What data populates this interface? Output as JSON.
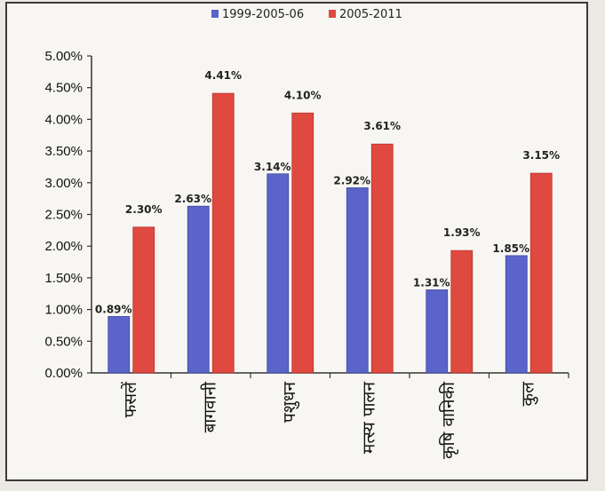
{
  "chart_data": {
    "type": "bar",
    "categories": [
      "फसलें",
      "बागवानी",
      "पशुधन",
      "मत्स्य पालन",
      "कृषि वानिकी",
      "कुल"
    ],
    "series": [
      {
        "name": "1999-2005-06",
        "color": "#5b64c8",
        "values": [
          0.89,
          2.63,
          3.14,
          2.92,
          1.31,
          1.85
        ],
        "labels": [
          "0.89%",
          "2.63%",
          "3.14%",
          "2.92%",
          "1.31%",
          "1.85%"
        ]
      },
      {
        "name": "2005-2011",
        "color": "#e0493f",
        "values": [
          2.3,
          4.41,
          4.1,
          3.61,
          1.93,
          3.15
        ],
        "labels": [
          "2.30%",
          "4.41%",
          "4.10%",
          "3.61%",
          "1.93%",
          "3.15%"
        ]
      }
    ],
    "ylim": [
      0,
      5
    ],
    "yticks": [
      "0.00%",
      "0.50%",
      "1.00%",
      "1.50%",
      "2.00%",
      "2.50%",
      "3.00%",
      "3.50%",
      "4.00%",
      "4.50%",
      "5.00%"
    ],
    "legend_position": "top",
    "grid": false,
    "title": "",
    "xlabel": "",
    "ylabel": ""
  }
}
